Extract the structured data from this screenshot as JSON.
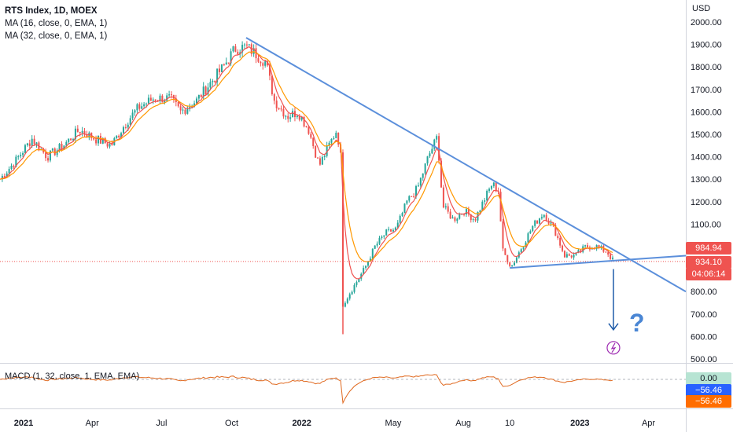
{
  "legend": {
    "title": "RTS Index, 1D, MOEX",
    "ma16": "MA (16, close, 0, EMA, 1)",
    "ma32": "MA (32, close, 0, EMA, 1)"
  },
  "macd_label": "MACD (1, 32, close, 1, EMA, EMA)",
  "currency": "USD",
  "tags": {
    "ma_value": "984.94",
    "last_price": "934.10",
    "countdown": "04:06:14",
    "macd_zero": "0.00",
    "macd_a": "−56.46",
    "macd_b": "−56.46"
  },
  "colors": {
    "up": "#26a69a",
    "down": "#ef5350",
    "ma16": "#ef5350",
    "ma32": "#ff9800",
    "trendline": "#5b8fdb",
    "macd": "#e0691f",
    "annotation": "#1e5ba8",
    "question": "#4a86d4"
  },
  "annotation": {
    "question_mark": "?",
    "flash_icon": "lightning-icon"
  },
  "chart_data": {
    "type": "candlestick",
    "title": "RTS Index, 1D, MOEX",
    "ylabel": "USD",
    "ylim": [
      450,
      2050
    ],
    "yticks": [
      500,
      600,
      700,
      800,
      900,
      1000,
      1100,
      1200,
      1300,
      1400,
      1500,
      1600,
      1700,
      1800,
      1900,
      2000
    ],
    "ytick_labels": [
      "500.00",
      "600.00",
      "700.00",
      "800.00",
      "900.00",
      "1000.00",
      "1100.00",
      "1200.00",
      "1300.00",
      "1400.00",
      "1500.00",
      "1600.00",
      "1700.00",
      "1800.00",
      "1900.00",
      "2000.00"
    ],
    "xticks": [
      {
        "label": "2021",
        "date": "2021-01-01"
      },
      {
        "label": "Apr",
        "date": "2021-04-01"
      },
      {
        "label": "Jul",
        "date": "2021-07-01"
      },
      {
        "label": "Oct",
        "date": "2021-10-01"
      },
      {
        "label": "2022",
        "date": "2022-01-01"
      },
      {
        "label": "May",
        "date": "2022-05-01"
      },
      {
        "label": "Aug",
        "date": "2022-08-01"
      },
      {
        "label": "10",
        "date": "2022-10-01"
      },
      {
        "label": "2023",
        "date": "2023-01-01"
      },
      {
        "label": "Apr",
        "date": "2023-04-01"
      }
    ],
    "price_path": [
      [
        "2020-12-01",
        1300
      ],
      [
        "2020-12-21",
        1380
      ],
      [
        "2021-01-12",
        1480
      ],
      [
        "2021-02-01",
        1400
      ],
      [
        "2021-02-22",
        1450
      ],
      [
        "2021-03-15",
        1520
      ],
      [
        "2021-04-05",
        1480
      ],
      [
        "2021-04-26",
        1450
      ],
      [
        "2021-05-17",
        1560
      ],
      [
        "2021-06-01",
        1620
      ],
      [
        "2021-06-21",
        1660
      ],
      [
        "2021-07-12",
        1660
      ],
      [
        "2021-07-26",
        1600
      ],
      [
        "2021-08-16",
        1650
      ],
      [
        "2021-09-01",
        1720
      ],
      [
        "2021-09-20",
        1800
      ],
      [
        "2021-10-05",
        1880
      ],
      [
        "2021-10-20",
        1890
      ],
      [
        "2021-11-01",
        1860
      ],
      [
        "2021-11-15",
        1820
      ],
      [
        "2021-11-26",
        1650
      ],
      [
        "2021-12-13",
        1580
      ],
      [
        "2021-12-27",
        1600
      ],
      [
        "2022-01-10",
        1520
      ],
      [
        "2022-01-24",
        1360
      ],
      [
        "2022-02-07",
        1460
      ],
      [
        "2022-02-16",
        1520
      ],
      [
        "2022-02-22",
        1380
      ],
      [
        "2022-02-24",
        742
      ],
      [
        "2022-03-24",
        900
      ],
      [
        "2022-04-07",
        1000
      ],
      [
        "2022-04-21",
        1060
      ],
      [
        "2022-05-05",
        1080
      ],
      [
        "2022-05-19",
        1200
      ],
      [
        "2022-06-02",
        1260
      ],
      [
        "2022-06-16",
        1400
      ],
      [
        "2022-06-28",
        1490
      ],
      [
        "2022-07-05",
        1180
      ],
      [
        "2022-07-19",
        1120
      ],
      [
        "2022-08-02",
        1160
      ],
      [
        "2022-08-16",
        1120
      ],
      [
        "2022-08-30",
        1220
      ],
      [
        "2022-09-08",
        1280
      ],
      [
        "2022-09-16",
        1250
      ],
      [
        "2022-09-22",
        980
      ],
      [
        "2022-10-03",
        910
      ],
      [
        "2022-10-17",
        1000
      ],
      [
        "2022-10-31",
        1090
      ],
      [
        "2022-11-14",
        1150
      ],
      [
        "2022-11-28",
        1080
      ],
      [
        "2022-12-12",
        960
      ],
      [
        "2022-12-26",
        960
      ],
      [
        "2023-01-09",
        1000
      ],
      [
        "2023-01-23",
        1000
      ],
      [
        "2023-02-06",
        975
      ],
      [
        "2023-02-14",
        934
      ]
    ],
    "spike_low": {
      "date": "2022-02-24",
      "value": 610
    },
    "last_price": 934.1,
    "ma16_value": 984.94,
    "trendlines": [
      {
        "name": "descending resistance",
        "from": [
          "2021-10-20",
          1930
        ],
        "to": [
          "2023-05-20",
          800
        ]
      },
      {
        "name": "support",
        "from": [
          "2022-10-01",
          905
        ],
        "to": [
          "2023-05-20",
          960
        ]
      }
    ],
    "projection": {
      "from": [
        "2023-02-14",
        900
      ],
      "to": [
        "2023-02-14",
        630
      ]
    },
    "macd": {
      "label": "MACD (1, 32, close, 1, EMA, EMA)",
      "value": -56.46,
      "zero_line": 0.0
    }
  }
}
